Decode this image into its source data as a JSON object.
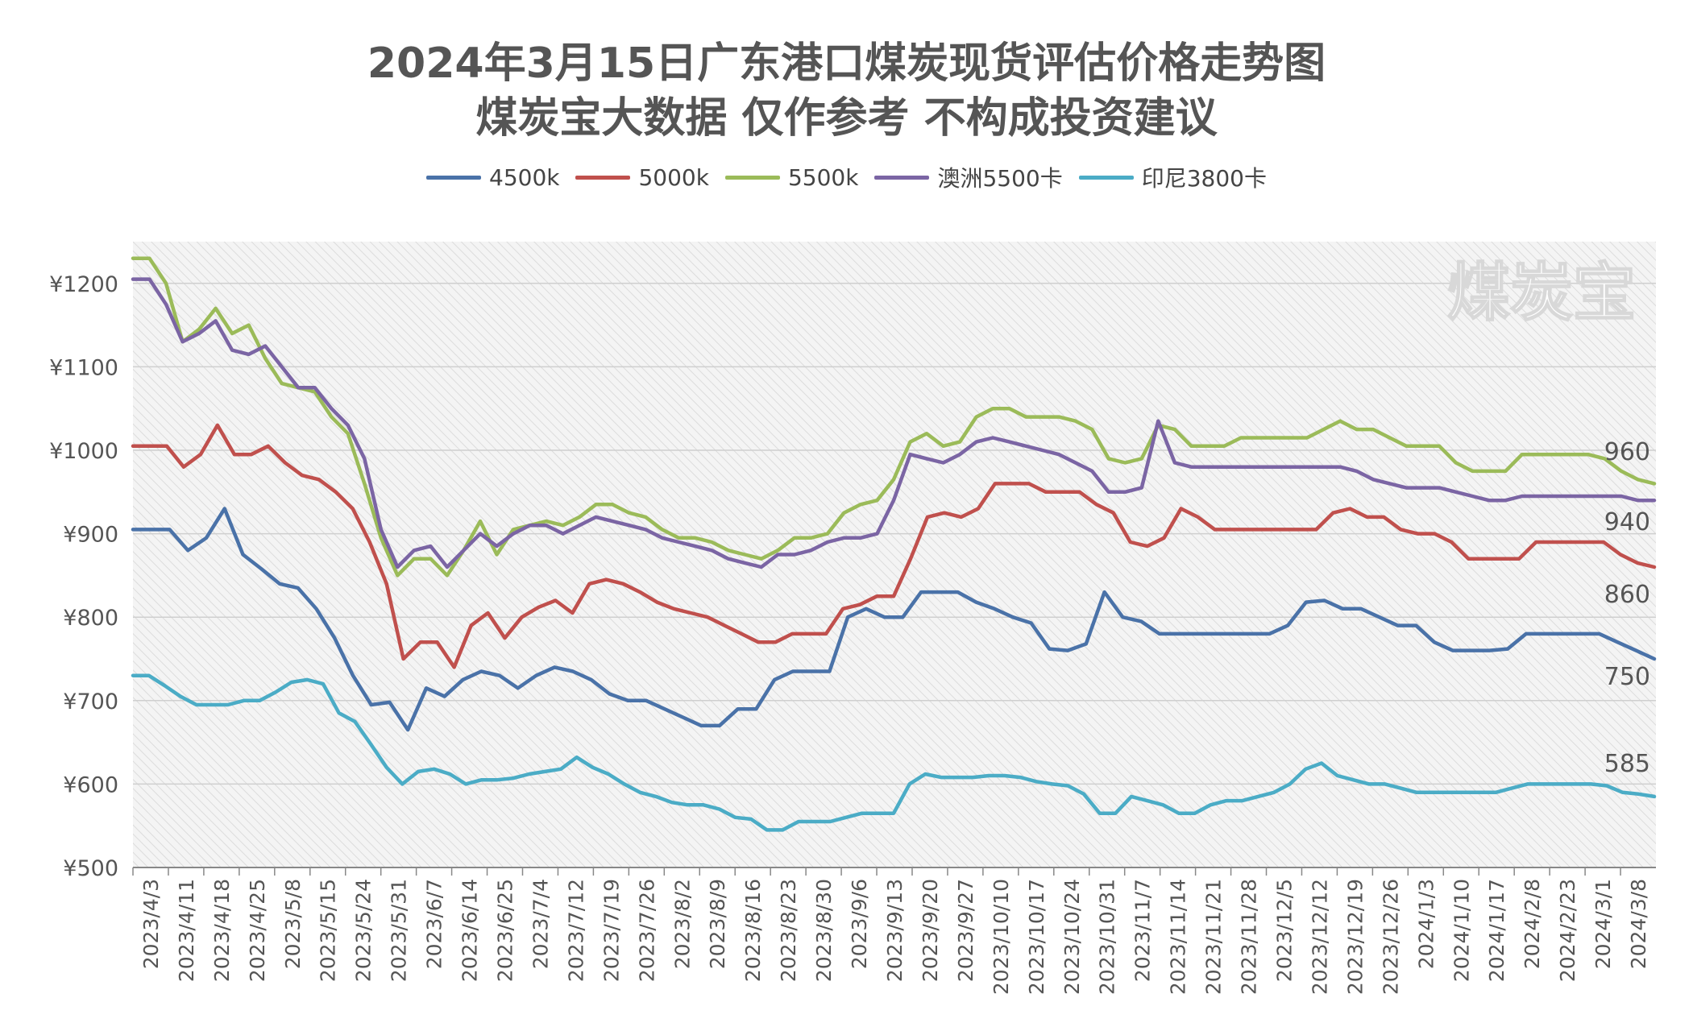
{
  "chart_data": {
    "type": "line",
    "title": "2024年3月15日广东港口煤炭现货评估价格走势图",
    "subtitle": "煤炭宝大数据 仅作参考 不构成投资建议",
    "watermark": "煤炭宝",
    "xlabel": "",
    "ylabel": "",
    "ylim": [
      500,
      1250
    ],
    "yticks": [
      500,
      600,
      700,
      800,
      900,
      1000,
      1100,
      1200
    ],
    "ytick_labels": [
      "¥500",
      "¥600",
      "¥700",
      "¥800",
      "¥900",
      "¥1000",
      "¥1100",
      "¥1200"
    ],
    "grid": true,
    "legend_position": "top-center",
    "x_tick_labels": [
      "2023/4/3",
      "2023/4/11",
      "2023/4/18",
      "2023/4/25",
      "2023/5/8",
      "2023/5/15",
      "2023/5/24",
      "2023/5/31",
      "2023/6/7",
      "2023/6/14",
      "2023/6/25",
      "2023/7/4",
      "2023/7/12",
      "2023/7/19",
      "2023/7/26",
      "2023/8/2",
      "2023/8/9",
      "2023/8/16",
      "2023/8/23",
      "2023/8/30",
      "2023/9/6",
      "2023/9/13",
      "2023/9/20",
      "2023/9/27",
      "2023/10/10",
      "2023/10/17",
      "2023/10/24",
      "2023/10/31",
      "2023/11/7",
      "2023/11/14",
      "2023/11/21",
      "2023/11/28",
      "2023/12/5",
      "2023/12/12",
      "2023/12/19",
      "2023/12/26",
      "2024/1/3",
      "2024/1/10",
      "2024/1/17",
      "2024/2/8",
      "2024/2/23",
      "2024/3/1",
      "2024/3/8"
    ],
    "end_labels": [
      "750",
      "860",
      "960",
      "940",
      "585"
    ],
    "series": [
      {
        "name": "4500k",
        "color": "#4a72a8",
        "values": [
          905,
          905,
          905,
          880,
          895,
          930,
          875,
          858,
          840,
          835,
          810,
          775,
          730,
          695,
          698,
          665,
          715,
          705,
          725,
          735,
          730,
          715,
          730,
          740,
          735,
          725,
          708,
          700,
          700,
          690,
          680,
          670,
          670,
          690,
          690,
          725,
          735,
          735,
          735,
          800,
          810,
          800,
          800,
          830,
          830,
          830,
          818,
          810,
          800,
          793,
          762,
          760,
          768,
          830,
          800,
          795,
          780,
          780,
          780,
          780,
          780,
          780,
          780,
          790,
          818,
          820,
          810,
          810,
          800,
          790,
          790,
          770,
          760,
          760,
          760,
          762,
          780,
          780,
          780,
          780,
          780,
          770,
          760,
          750
        ]
      },
      {
        "name": "5000k",
        "color": "#c0504d",
        "values": [
          1005,
          1005,
          1005,
          980,
          995,
          1030,
          995,
          995,
          1005,
          985,
          970,
          965,
          950,
          930,
          890,
          840,
          750,
          770,
          770,
          740,
          790,
          805,
          775,
          800,
          812,
          820,
          805,
          840,
          845,
          840,
          830,
          818,
          810,
          805,
          800,
          790,
          780,
          770,
          770,
          780,
          780,
          780,
          810,
          815,
          825,
          825,
          870,
          920,
          925,
          920,
          930,
          960,
          960,
          960,
          950,
          950,
          950,
          935,
          925,
          890,
          885,
          895,
          930,
          920,
          905,
          905,
          905,
          905,
          905,
          905,
          905,
          925,
          930,
          920,
          920,
          905,
          900,
          900,
          890,
          870,
          870,
          870,
          870,
          890,
          890,
          890,
          890,
          890,
          875,
          865,
          860
        ]
      },
      {
        "name": "5500k",
        "color": "#9bbb59",
        "values": [
          1230,
          1230,
          1200,
          1130,
          1145,
          1170,
          1140,
          1150,
          1110,
          1080,
          1075,
          1070,
          1040,
          1020,
          960,
          895,
          850,
          870,
          870,
          850,
          880,
          915,
          875,
          905,
          910,
          915,
          910,
          920,
          935,
          935,
          925,
          920,
          905,
          895,
          895,
          890,
          880,
          875,
          870,
          880,
          895,
          895,
          900,
          925,
          935,
          940,
          965,
          1010,
          1020,
          1005,
          1010,
          1040,
          1050,
          1050,
          1040,
          1040,
          1040,
          1035,
          1025,
          990,
          985,
          990,
          1030,
          1025,
          1005,
          1005,
          1005,
          1015,
          1015,
          1015,
          1015,
          1015,
          1025,
          1035,
          1025,
          1025,
          1015,
          1005,
          1005,
          1005,
          985,
          975,
          975,
          975,
          995,
          995,
          995,
          995,
          995,
          990,
          975,
          965,
          960
        ]
      },
      {
        "name": "澳洲5500卡",
        "color": "#7b65a4",
        "values": [
          1205,
          1205,
          1175,
          1130,
          1140,
          1155,
          1120,
          1115,
          1125,
          1100,
          1075,
          1075,
          1050,
          1030,
          990,
          905,
          860,
          880,
          885,
          860,
          880,
          900,
          885,
          900,
          910,
          910,
          900,
          910,
          920,
          915,
          910,
          905,
          895,
          890,
          885,
          880,
          870,
          865,
          860,
          875,
          875,
          880,
          890,
          895,
          895,
          900,
          940,
          995,
          990,
          985,
          995,
          1010,
          1015,
          1010,
          1005,
          1000,
          995,
          985,
          975,
          950,
          950,
          955,
          1035,
          985,
          980,
          980,
          980,
          980,
          980,
          980,
          980,
          980,
          980,
          980,
          975,
          965,
          960,
          955,
          955,
          955,
          950,
          945,
          940,
          940,
          945,
          945,
          945,
          945,
          945,
          945,
          945,
          940,
          940
        ]
      },
      {
        "name": "印尼3800卡",
        "color": "#4bacc6",
        "values": [
          730,
          730,
          718,
          705,
          695,
          695,
          695,
          700,
          700,
          710,
          722,
          725,
          720,
          685,
          675,
          648,
          620,
          600,
          615,
          618,
          612,
          600,
          605,
          605,
          607,
          612,
          615,
          618,
          632,
          620,
          612,
          600,
          590,
          585,
          578,
          575,
          575,
          570,
          560,
          558,
          545,
          545,
          555,
          555,
          555,
          560,
          565,
          565,
          565,
          600,
          612,
          608,
          608,
          608,
          610,
          610,
          608,
          603,
          600,
          598,
          588,
          565,
          565,
          585,
          580,
          575,
          565,
          565,
          575,
          580,
          580,
          585,
          590,
          600,
          618,
          625,
          610,
          605,
          600,
          600,
          595,
          590,
          590,
          590,
          590,
          590,
          590,
          595,
          600,
          600,
          600,
          600,
          600,
          598,
          590,
          588,
          585
        ]
      }
    ]
  }
}
